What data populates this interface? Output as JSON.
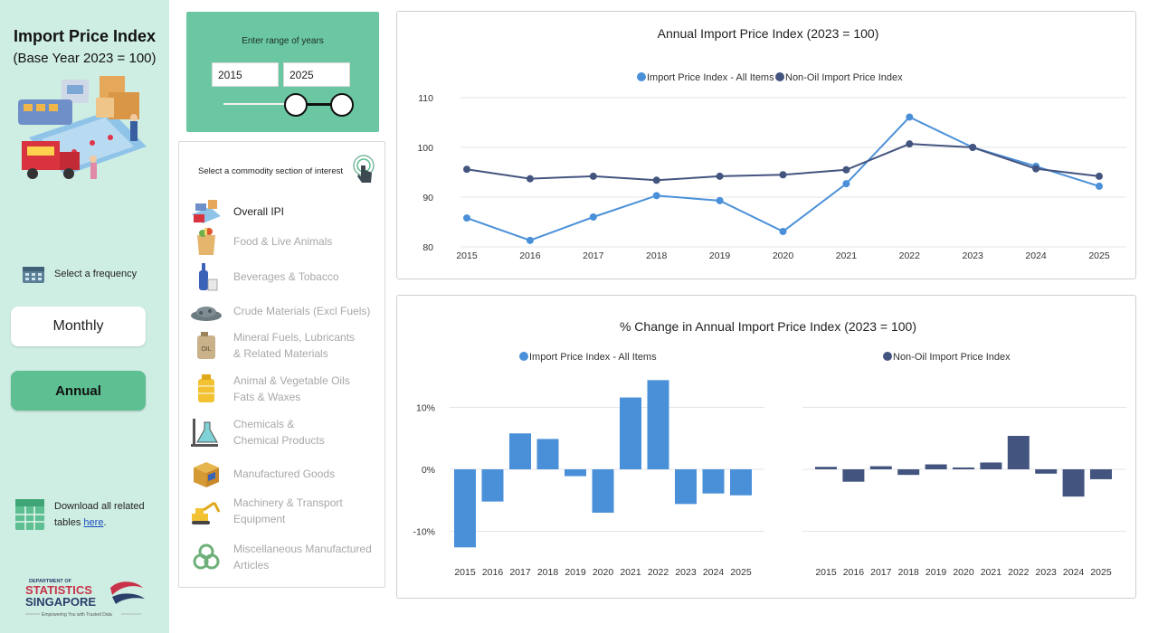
{
  "sidebar": {
    "title": "Import Price Index",
    "subtitle": "(Base Year 2023 = 100)",
    "frequency_label": "Select a frequency",
    "frequency_options": [
      "Monthly",
      "Annual"
    ],
    "selected_frequency": "Annual",
    "download_text_line1": "Download all related",
    "download_text_line2": "tables",
    "download_link": "here",
    "download_suffix": ".",
    "logo_line1": "DEPARTMENT OF",
    "logo_line2": "STATISTICS",
    "logo_line3": "SINGAPORE",
    "logo_tagline": "Empowering You with Trusted Data"
  },
  "year_range": {
    "prompt": "Enter range of years",
    "from": "2015",
    "to": "2025"
  },
  "commodity": {
    "prompt": "Select a  commodity section of interest",
    "items": [
      {
        "label": "Overall IPI",
        "icon": "overall-ipi-icon",
        "active": true
      },
      {
        "label": "Food & Live Animals",
        "icon": "food-icon",
        "active": false
      },
      {
        "label": "Beverages & Tobacco",
        "icon": "beverages-icon",
        "active": false
      },
      {
        "label": "Crude Materials (Excl Fuels)",
        "icon": "crude-materials-icon",
        "active": false
      },
      {
        "label": "Mineral Fuels, Lubricants",
        "label2": "& Related Materials",
        "icon": "oil-can-icon",
        "active": false
      },
      {
        "label": "Animal & Vegetable Oils",
        "label2": "Fats & Waxes",
        "icon": "oil-bottle-icon",
        "active": false
      },
      {
        "label": "Chemicals &",
        "label2": "Chemical Products",
        "icon": "chemicals-icon",
        "active": false
      },
      {
        "label": "Manufactured Goods",
        "icon": "box-icon",
        "active": false
      },
      {
        "label": "Machinery & Transport",
        "label2": "Equipment",
        "icon": "excavator-icon",
        "active": false
      },
      {
        "label": "Miscellaneous Manufactured",
        "label2": "Articles",
        "icon": "gears-icon",
        "active": false
      }
    ]
  },
  "colors": {
    "sidebar_bg": "#cfeee3",
    "accent_green": "#5dbf92",
    "year_panel": "#6bc6a2",
    "series_all": "#4a90d9",
    "series_nonoil": "#43557f"
  },
  "chart_data": [
    {
      "type": "line",
      "title": "Annual Import Price Index (2023 = 100)",
      "x": [
        2015,
        2016,
        2017,
        2018,
        2019,
        2020,
        2021,
        2022,
        2023,
        2024,
        2025
      ],
      "ylim": [
        80,
        110
      ],
      "yticks": [
        80,
        90,
        100,
        110
      ],
      "grid": true,
      "legend": "top",
      "series": [
        {
          "name": "Import Price Index - All Items",
          "color": "#4a90d9",
          "values": [
            85.8,
            81.3,
            86.0,
            90.3,
            89.3,
            83.1,
            92.7,
            106.1,
            100.0,
            96.2,
            92.2
          ]
        },
        {
          "name": "Non-Oil Import Price Index",
          "color": "#43557f",
          "values": [
            95.6,
            93.7,
            94.2,
            93.4,
            94.2,
            94.5,
            95.5,
            100.7,
            100.0,
            95.7,
            94.2
          ]
        }
      ]
    },
    {
      "type": "bar",
      "title": "% Change in Annual Import Price Index (2023 = 100)",
      "categories": [
        2015,
        2016,
        2017,
        2018,
        2019,
        2020,
        2021,
        2022,
        2023,
        2024,
        2025
      ],
      "ylim": [
        -13,
        16
      ],
      "yticks": [
        -10,
        0,
        10
      ],
      "ytick_labels": [
        "-10%",
        "0%",
        "10%"
      ],
      "grid": true,
      "panels": [
        {
          "name": "Import Price Index - All Items",
          "color": "#4a90d9",
          "values": [
            -12.6,
            -5.2,
            5.8,
            4.9,
            -1.1,
            -7.0,
            11.6,
            14.4,
            -5.6,
            -3.9,
            -4.2
          ]
        },
        {
          "name": "Non-Oil Import Price Index",
          "color": "#43557f",
          "values": [
            0.4,
            -2.0,
            0.5,
            -0.9,
            0.8,
            0.3,
            1.1,
            5.4,
            -0.7,
            -4.4,
            -1.6
          ]
        }
      ]
    }
  ]
}
